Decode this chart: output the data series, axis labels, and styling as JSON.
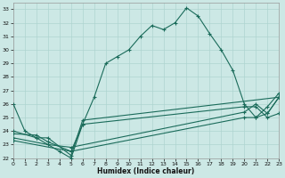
{
  "xlabel": "Humidex (Indice chaleur)",
  "xlim": [
    0,
    23
  ],
  "ylim": [
    22,
    33.5
  ],
  "xticks": [
    0,
    1,
    2,
    3,
    4,
    5,
    6,
    7,
    8,
    9,
    10,
    11,
    12,
    13,
    14,
    15,
    16,
    17,
    18,
    19,
    20,
    21,
    22,
    23
  ],
  "yticks": [
    22,
    23,
    24,
    25,
    26,
    27,
    28,
    29,
    30,
    31,
    32,
    33
  ],
  "bg_color": "#cce8e5",
  "grid_color": "#aed4d0",
  "line_color": "#1a6b5a",
  "line_width": 0.8,
  "marker": "+",
  "marker_size": 3,
  "series": [
    [
      [
        0,
        26
      ],
      [
        1,
        24
      ],
      [
        2,
        23.5
      ],
      [
        3,
        23
      ],
      [
        4,
        22.5
      ],
      [
        5,
        22
      ],
      [
        6,
        24.5
      ],
      [
        7,
        26.5
      ],
      [
        8,
        29
      ],
      [
        9,
        29.5
      ],
      [
        10,
        30
      ],
      [
        11,
        31
      ],
      [
        12,
        31.8
      ],
      [
        13,
        31.5
      ],
      [
        14,
        32
      ],
      [
        15,
        33.1
      ],
      [
        16,
        32.5
      ],
      [
        17,
        31.2
      ],
      [
        18,
        30
      ],
      [
        19,
        28.5
      ],
      [
        20,
        26
      ],
      [
        21,
        25
      ],
      [
        22,
        25.3
      ],
      [
        23,
        26.5
      ]
    ],
    [
      [
        0,
        24
      ],
      [
        2,
        23.5
      ],
      [
        3,
        23.5
      ],
      [
        5,
        22.2
      ],
      [
        6,
        24.8
      ],
      [
        23,
        26.5
      ]
    ],
    [
      [
        0,
        23.8
      ],
      [
        2,
        23.7
      ],
      [
        3,
        23.2
      ],
      [
        5,
        22.5
      ],
      [
        6,
        24.5
      ],
      [
        20,
        25.8
      ],
      [
        21,
        25.8
      ],
      [
        22,
        25.0
      ],
      [
        23,
        25.3
      ]
    ],
    [
      [
        0,
        23.5
      ],
      [
        3,
        23.0
      ],
      [
        5,
        22.8
      ],
      [
        20,
        25.4
      ],
      [
        21,
        26.0
      ],
      [
        22,
        25.3
      ],
      [
        23,
        26.5
      ]
    ],
    [
      [
        0,
        23.3
      ],
      [
        5,
        22.5
      ],
      [
        20,
        25.0
      ],
      [
        21,
        25.0
      ],
      [
        22,
        25.8
      ],
      [
        23,
        26.8
      ]
    ]
  ]
}
